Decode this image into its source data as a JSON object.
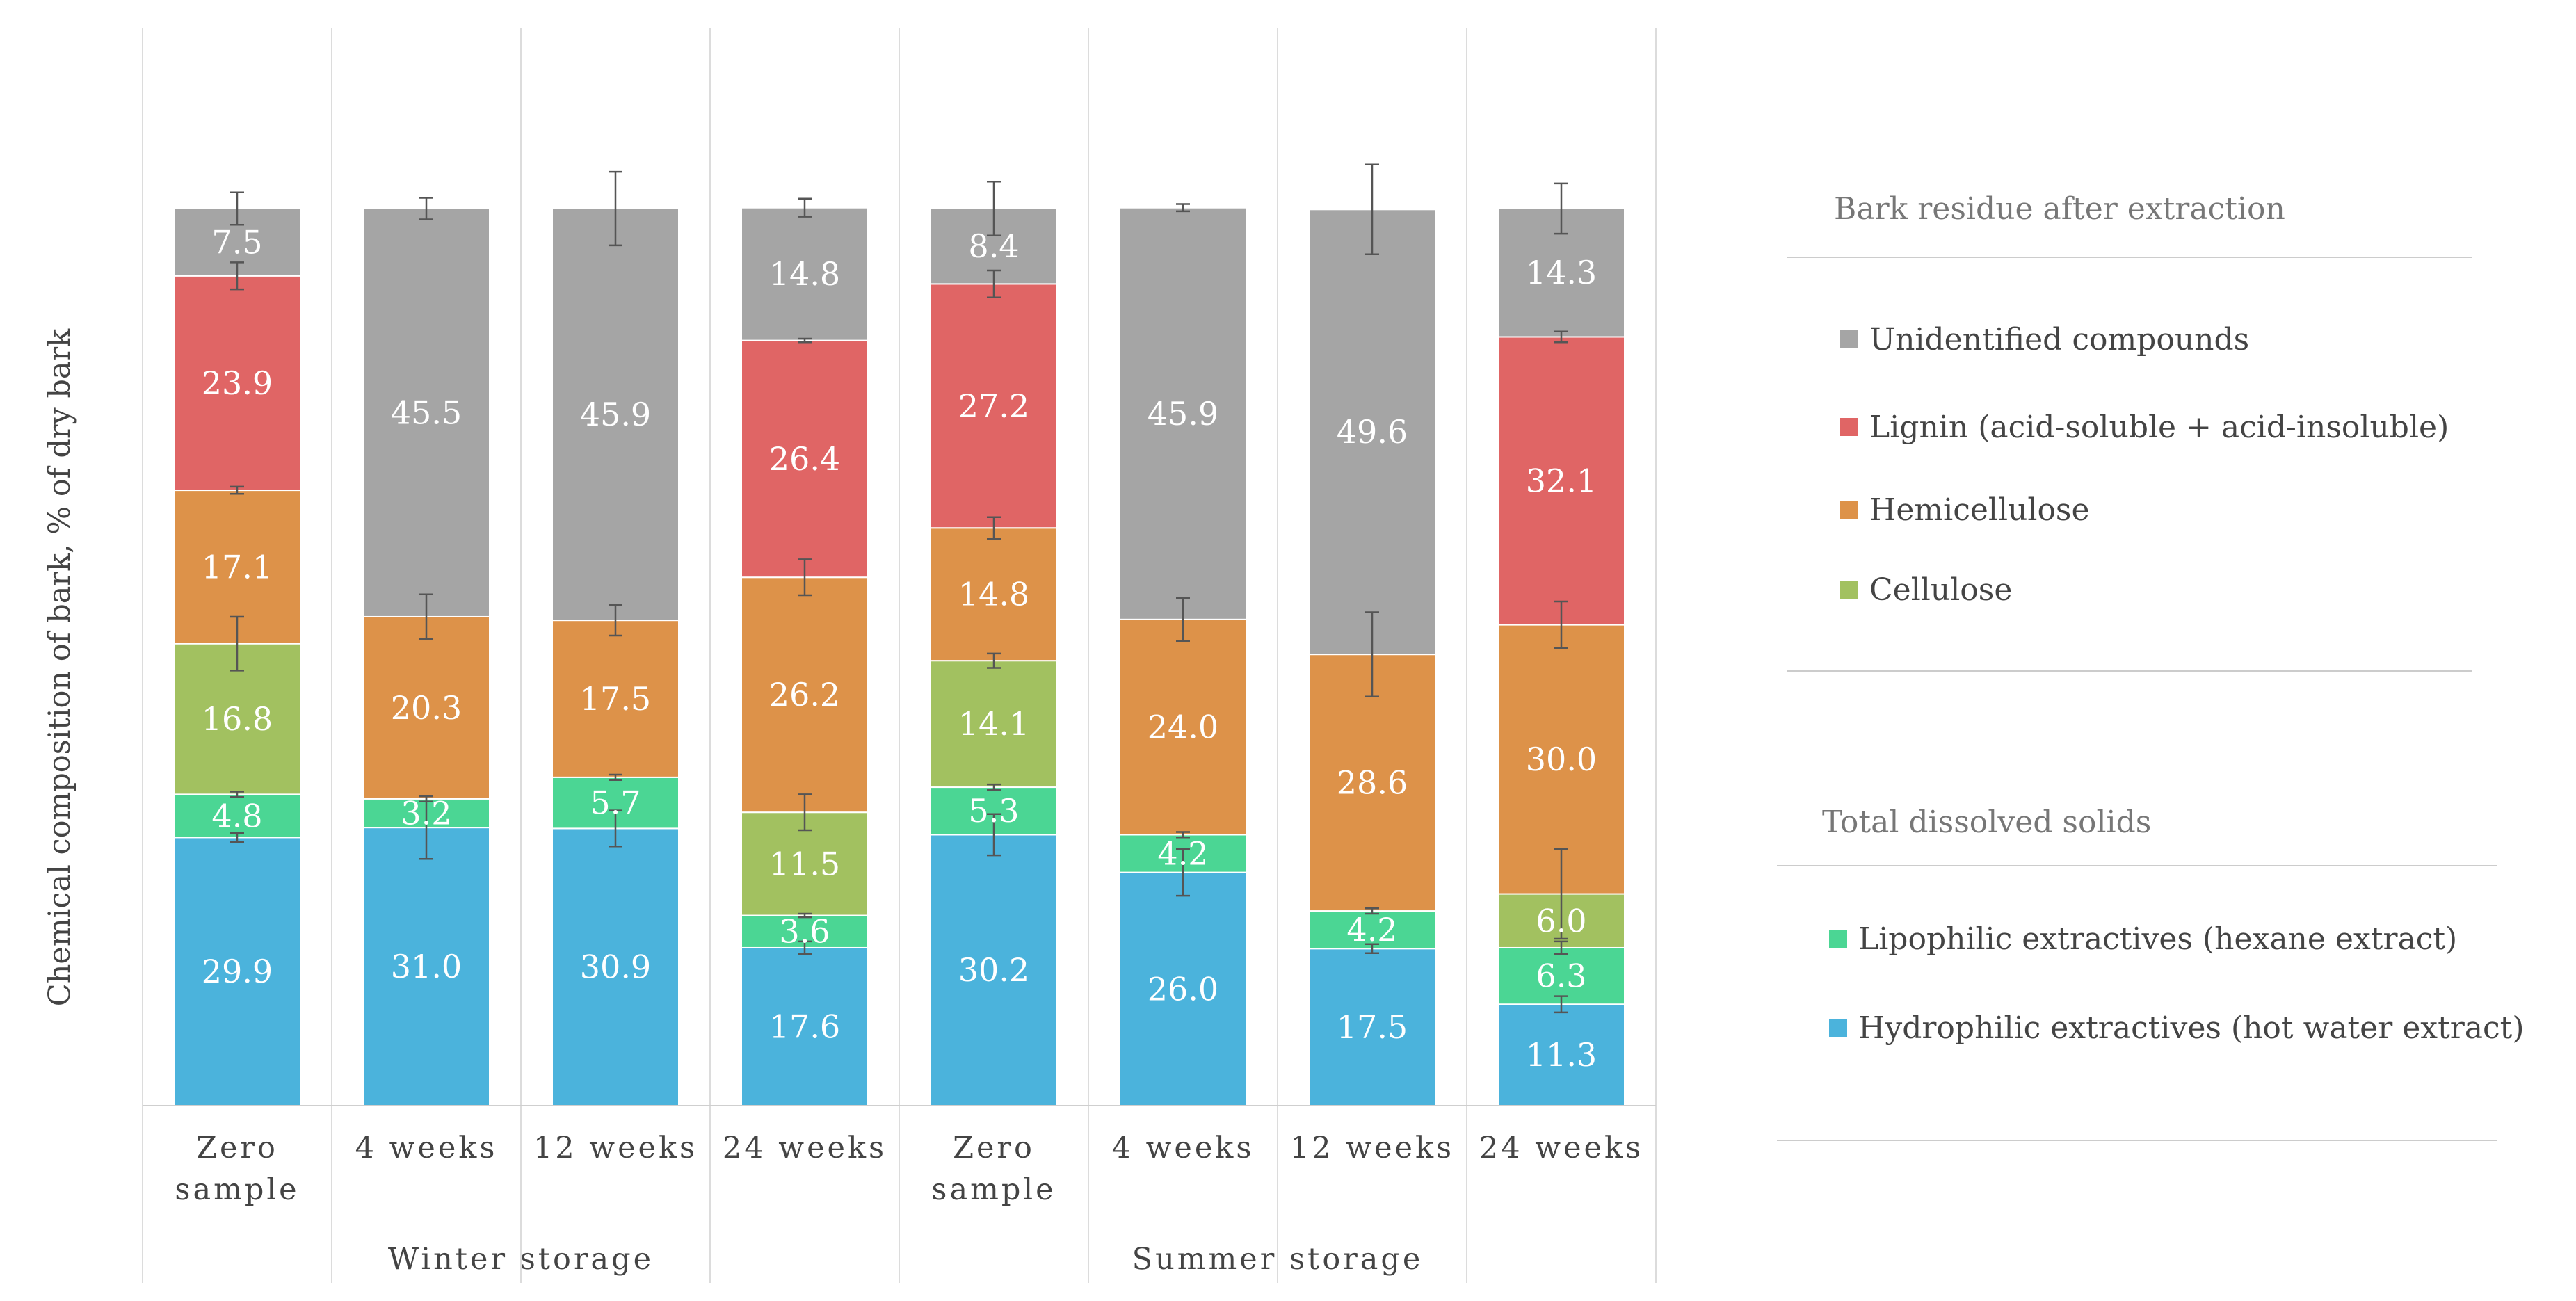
{
  "chart_data": {
    "type": "bar",
    "stacked": true,
    "ylabel": "Chemical composition of bark, % of dry bark",
    "xlabel": "",
    "ylim": [
      0,
      100
    ],
    "grid": false,
    "legend_position": "right",
    "categories": [
      {
        "label_lines": [
          "Zero",
          "sample"
        ],
        "group": "Winter storage"
      },
      {
        "label_lines": [
          "4 weeks"
        ],
        "group": "Winter storage"
      },
      {
        "label_lines": [
          "12 weeks"
        ],
        "group": "Winter storage"
      },
      {
        "label_lines": [
          "24 weeks"
        ],
        "group": "Winter storage"
      },
      {
        "label_lines": [
          "Zero",
          "sample"
        ],
        "group": "Summer storage"
      },
      {
        "label_lines": [
          "4 weeks"
        ],
        "group": "Summer storage"
      },
      {
        "label_lines": [
          "12 weeks"
        ],
        "group": "Summer storage"
      },
      {
        "label_lines": [
          "24 weeks"
        ],
        "group": "Summer storage"
      }
    ],
    "groups": [
      "Winter storage",
      "Summer storage"
    ],
    "series": [
      {
        "name": "Hydrophilic extractives (hot water extract)",
        "color": "#4bb3dc",
        "values": [
          29.9,
          31.0,
          30.9,
          17.6,
          30.2,
          26.0,
          17.5,
          11.3
        ],
        "labels": [
          "29.9",
          "31.0",
          "30.9",
          "17.6",
          "30.2",
          "26.0",
          "17.5",
          "11.3"
        ],
        "errors": [
          0.5,
          3.5,
          2.0,
          0.7,
          2.3,
          2.6,
          0.5,
          0.9
        ]
      },
      {
        "name": "Lipophilic extractives (hexane extract)",
        "color": "#4bd694",
        "values": [
          4.8,
          3.2,
          5.7,
          3.6,
          5.3,
          4.2,
          4.2,
          6.3
        ],
        "labels": [
          "4.8",
          "3.2",
          "5.7",
          "3.6",
          "5.3",
          "4.2",
          "4.2",
          "6.3"
        ],
        "errors": [
          0.3,
          0.3,
          0.3,
          0.2,
          0.3,
          0.3,
          0.3,
          0.7
        ]
      },
      {
        "name": "Cellulose",
        "color": "#a2c160",
        "values": [
          16.8,
          0,
          0,
          11.5,
          14.1,
          0,
          0,
          6.0
        ],
        "labels": [
          "16.8",
          "",
          "",
          "11.5",
          "14.1",
          "",
          "",
          "6.0"
        ],
        "errors": [
          3.0,
          0,
          0,
          2.0,
          0.8,
          0,
          0,
          5.0
        ]
      },
      {
        "name": "Hemicellulose",
        "color": "#dd9249",
        "values": [
          17.1,
          20.3,
          17.5,
          26.2,
          14.8,
          24.0,
          28.6,
          30.0
        ],
        "labels": [
          "17.1",
          "20.3",
          "17.5",
          "26.2",
          "14.8",
          "24.0",
          "28.6",
          "30.0"
        ],
        "errors": [
          0.4,
          2.5,
          1.7,
          2.0,
          1.2,
          2.4,
          4.7,
          2.6
        ]
      },
      {
        "name": "Lignin (acid-soluble + acid-insoluble)",
        "color": "#e06565",
        "values": [
          23.9,
          0,
          0,
          26.4,
          27.2,
          0,
          0,
          32.1
        ],
        "labels": [
          "23.9",
          "",
          "",
          "26.4",
          "27.2",
          "",
          "",
          "32.1"
        ],
        "errors": [
          1.5,
          0,
          0,
          0.2,
          1.5,
          0,
          0,
          0.6
        ]
      },
      {
        "name": "Unidentified compounds",
        "color": "#a5a5a5",
        "values": [
          7.5,
          45.5,
          45.9,
          14.8,
          8.4,
          45.9,
          49.6,
          14.3
        ],
        "labels": [
          "7.5",
          "45.5",
          "45.9",
          "14.8",
          "8.4",
          "45.9",
          "49.6",
          "14.3"
        ],
        "errors": [
          1.8,
          1.2,
          4.1,
          1.0,
          3.0,
          0.4,
          5.0,
          2.8
        ]
      }
    ],
    "legend": {
      "sections": [
        {
          "title": "Bark residue after extraction",
          "entries": [
            "Unidentified compounds",
            "Lignin (acid-soluble + acid-insoluble)",
            "Hemicellulose",
            "Cellulose"
          ]
        },
        {
          "title": "Total dissolved solids",
          "entries": [
            "Lipophilic extractives (hexane extract)",
            "Hydrophilic extractives (hot water extract)"
          ]
        }
      ]
    }
  }
}
